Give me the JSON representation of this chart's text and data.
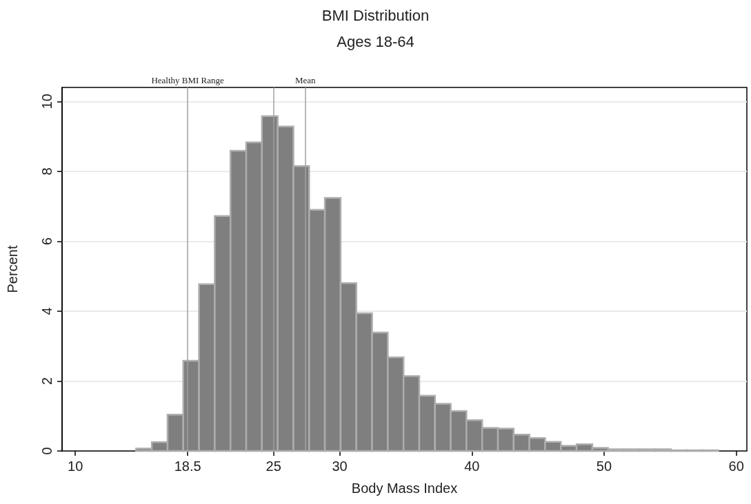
{
  "chart_data": {
    "type": "histogram",
    "title": "BMI Distribution",
    "subtitle": "Ages 18-64",
    "xlabel": "Body Mass Index",
    "ylabel": "Percent",
    "bins": [
      14.6,
      15.79,
      16.98,
      18.17,
      19.36,
      20.55,
      21.74,
      22.93,
      24.12,
      25.31,
      26.5,
      27.69,
      28.88,
      30.07,
      31.26,
      32.45,
      33.64,
      34.83,
      36.02,
      37.21,
      38.4,
      39.59,
      40.78,
      41.97,
      43.16,
      44.35,
      45.54,
      46.73,
      47.92,
      49.11,
      50.3,
      51.49,
      52.68,
      53.87,
      55.06,
      56.25,
      57.44,
      58.63
    ],
    "values": [
      0.07,
      0.25,
      1.04,
      2.58,
      4.77,
      6.72,
      8.59,
      8.83,
      9.58,
      9.28,
      8.15,
      6.9,
      7.24,
      4.8,
      3.94,
      3.39,
      2.68,
      2.14,
      1.58,
      1.35,
      1.14,
      0.88,
      0.66,
      0.64,
      0.47,
      0.37,
      0.26,
      0.15,
      0.19,
      0.09,
      0.05,
      0.05,
      0.05,
      0.05,
      0.02,
      0.02,
      0.02
    ],
    "color": "#7f7f7f",
    "xlim": [
      9,
      60.8
    ],
    "xticks": [
      10,
      18.5,
      25,
      30,
      40,
      50,
      60
    ],
    "ylim": [
      0,
      10.4
    ],
    "yticks": [
      0,
      2,
      4,
      6,
      8,
      10
    ],
    "grid": "y",
    "legend": false,
    "ref_lines": [
      {
        "axis": "x",
        "value": 18.5,
        "label": "Healthy BMI Range",
        "color": "#a0a0a0"
      },
      {
        "axis": "x",
        "value": 25,
        "label": null,
        "color": "#a0a0a0"
      },
      {
        "axis": "x",
        "value": 27.4,
        "label": "Mean",
        "color": "#a0a0a0"
      }
    ]
  }
}
